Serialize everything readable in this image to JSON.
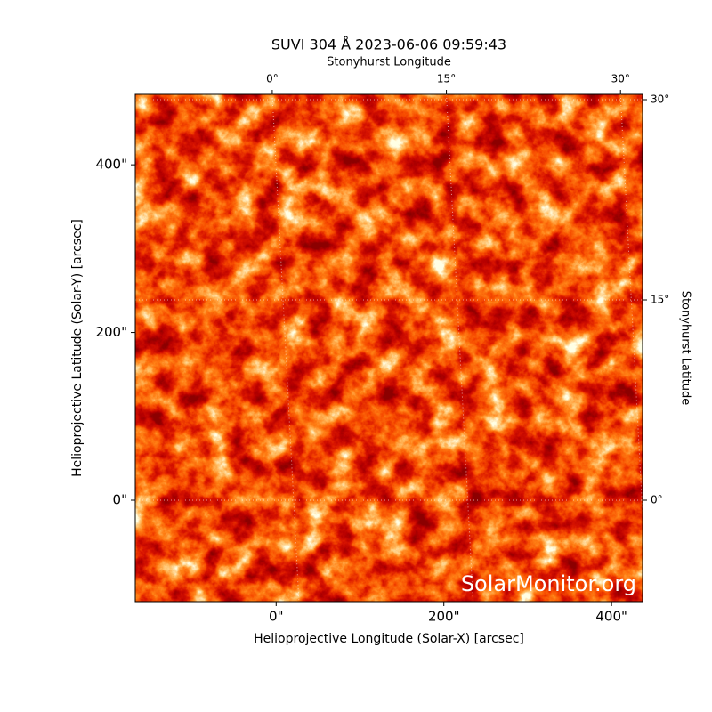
{
  "chart_data": {
    "type": "image",
    "title": "SUVI 304 Å 2023-06-06 09:59:43",
    "xlabel": "Helioprojective Longitude (Solar-X) [arcsec]",
    "ylabel": "Helioprojective Latitude (Solar-Y) [arcsec]",
    "x2label": "Stonyhurst Longitude",
    "y2label": "Stonyhurst Latitude",
    "watermark": "SolarMonitor.org",
    "xlim": [
      -168,
      437
    ],
    "ylim": [
      -121,
      484
    ],
    "xticks": [
      {
        "value": 0,
        "label": "0\""
      },
      {
        "value": 200,
        "label": "200\""
      },
      {
        "value": 400,
        "label": "400\""
      }
    ],
    "yticks": [
      {
        "value": 0,
        "label": "0\""
      },
      {
        "value": 200,
        "label": "200\""
      },
      {
        "value": 400,
        "label": "400\""
      }
    ],
    "x2lim": [
      -11.8,
      31.9
    ],
    "y2lim": [
      -7.6,
      30.4
    ],
    "x2ticks": [
      {
        "value": 0,
        "label": "0°"
      },
      {
        "value": 15,
        "label": "15°"
      },
      {
        "value": 30,
        "label": "30°"
      }
    ],
    "y2ticks": [
      {
        "value": 0,
        "label": "0°"
      },
      {
        "value": 15,
        "label": "15°"
      },
      {
        "value": 30,
        "label": "30°"
      }
    ],
    "grid": true
  }
}
